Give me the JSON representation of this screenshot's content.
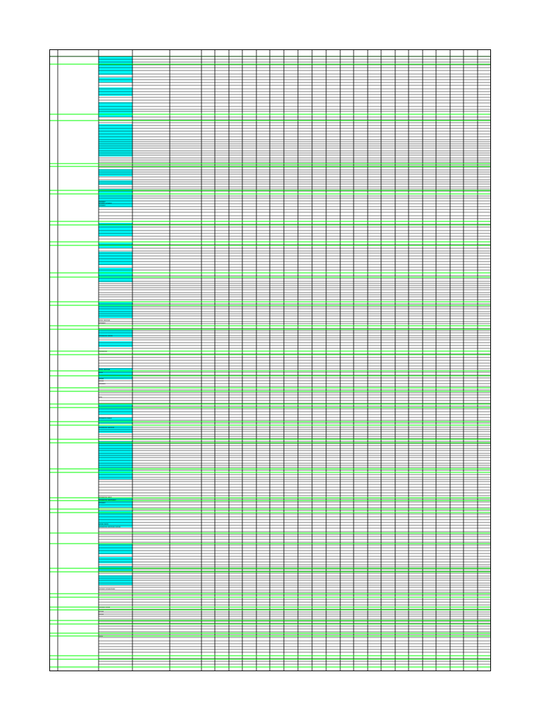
{
  "sheet": {
    "title": "",
    "fill_color": "#00ffff",
    "grid_color": "#000000",
    "group_line_color": "#00ff00",
    "column_count": 29,
    "notes": [
      {
        "row": 287,
        "text": "xxxxxxxx"
      },
      {
        "row": 289,
        "text": "xxxxxxxx xxxxxxx"
      },
      {
        "row": 292,
        "text": "xxxxxxxx"
      },
      {
        "row": 455,
        "text": "xxxxx xxxxxxxx"
      },
      {
        "row": 459,
        "text": "xxxxxxxx"
      },
      {
        "row": 477,
        "text": "xxxxxxxxxx xxxxxx"
      },
      {
        "row": 499,
        "text": "xxxxxxxxxx"
      },
      {
        "row": 525,
        "text": "xxxxx xxxxxxxx"
      },
      {
        "row": 529,
        "text": "xxxxx"
      },
      {
        "row": 538,
        "text": "xxxxxx"
      },
      {
        "row": 541,
        "text": "xxxxxx"
      },
      {
        "row": 545,
        "text": "xxxxxxxx"
      },
      {
        "row": 564,
        "text": "xxxx"
      },
      {
        "row": 594,
        "text": "xxxxxxxxx xxxxxx"
      },
      {
        "row": 607,
        "text": "xxxxxxxxxx xxxxxxxx"
      },
      {
        "row": 706,
        "text": "xxxxxxxxxx xxxxx"
      },
      {
        "row": 710,
        "text": "xxxxxxxxxx xxxxxxxxxx"
      },
      {
        "row": 714,
        "text": "xxxxxxxx"
      },
      {
        "row": 744,
        "text": "xxxxxx xxxxx"
      },
      {
        "row": 748,
        "text": "xxxxxxxxxx xxxxxxxxx xxxxxx"
      },
      {
        "row": 836,
        "text": "xxxxxxxx xxxxxxxxxxx"
      },
      {
        "row": 862,
        "text": "xxxxxxxx xxxxx"
      },
      {
        "row": 868,
        "text": "xxxxxx"
      },
      {
        "row": 872,
        "text": "xxxxxx"
      },
      {
        "row": 903,
        "text": "xxxxx"
      }
    ]
  }
}
